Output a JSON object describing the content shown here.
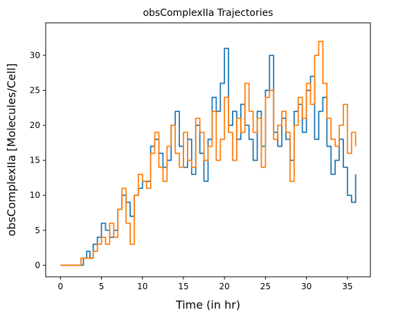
{
  "chart_data": {
    "type": "line",
    "title": "obsComplexIIa Trajectories",
    "xlabel": "Time (in hr)",
    "ylabel": "obsComplexIIa [Molecules/Cell]",
    "xlim": [
      -1.8,
      37.8
    ],
    "ylim": [
      -1.65,
      34.65
    ],
    "xticks": [
      0,
      5,
      10,
      15,
      20,
      25,
      30,
      35
    ],
    "yticks": [
      0,
      5,
      10,
      15,
      20,
      25,
      30
    ],
    "grid": false,
    "legend": "none",
    "series": [
      {
        "color": "#1f77b4",
        "x": [
          0,
          2.5,
          2.8,
          3.2,
          3.6,
          4.0,
          4.5,
          5.0,
          5.5,
          6.0,
          6.5,
          7.0,
          7.5,
          8.0,
          8.5,
          9.0,
          9.5,
          10.0,
          10.5,
          11.0,
          11.5,
          12.0,
          12.5,
          13.0,
          13.5,
          14.0,
          14.5,
          15.0,
          15.5,
          16.0,
          16.5,
          17.0,
          17.5,
          18.0,
          18.5,
          19.0,
          19.5,
          20.0,
          20.5,
          21.0,
          21.5,
          22.0,
          22.5,
          23.0,
          23.5,
          24.0,
          24.5,
          25.0,
          25.5,
          26.0,
          26.5,
          27.0,
          27.5,
          28.0,
          28.5,
          29.0,
          29.5,
          30.0,
          30.5,
          31.0,
          31.5,
          32.0,
          32.5,
          33.0,
          33.5,
          34.0,
          34.5,
          35.0,
          35.5,
          36.0
        ],
        "y": [
          0,
          0,
          1,
          2,
          1,
          3,
          4,
          6,
          5,
          4,
          5,
          8,
          10,
          9,
          7,
          10,
          11,
          12,
          12,
          17,
          18,
          16,
          14,
          15,
          20,
          22,
          17,
          14,
          18,
          13,
          20,
          16,
          12,
          18,
          24,
          22,
          26,
          31,
          20,
          22,
          18,
          23,
          20,
          18,
          15,
          22,
          17,
          25,
          30,
          19,
          17,
          21,
          18,
          15,
          22,
          23,
          19,
          25,
          27,
          18,
          22,
          24,
          17,
          13,
          15,
          18,
          14,
          10,
          9,
          13
        ]
      },
      {
        "color": "#ff7f0e",
        "x": [
          0,
          2.0,
          2.5,
          3.0,
          3.5,
          4.0,
          4.5,
          5.0,
          5.5,
          6.0,
          6.5,
          7.0,
          7.5,
          8.0,
          8.5,
          9.0,
          9.5,
          10.0,
          10.5,
          11.0,
          11.5,
          12.0,
          12.5,
          13.0,
          13.5,
          14.0,
          14.5,
          15.0,
          15.5,
          16.0,
          16.5,
          17.0,
          17.5,
          18.0,
          18.5,
          19.0,
          19.5,
          20.0,
          20.5,
          21.0,
          21.5,
          22.0,
          22.5,
          23.0,
          23.5,
          24.0,
          24.5,
          25.0,
          25.5,
          26.0,
          26.5,
          27.0,
          27.5,
          28.0,
          28.5,
          29.0,
          29.5,
          30.0,
          30.5,
          31.0,
          31.5,
          32.0,
          32.5,
          33.0,
          33.5,
          34.0,
          34.5,
          35.0,
          35.5,
          36.0
        ],
        "y": [
          0,
          0,
          1,
          1,
          1,
          2,
          3,
          4,
          3,
          6,
          4,
          8,
          11,
          6,
          3,
          10,
          13,
          12,
          11,
          16,
          19,
          14,
          12,
          17,
          20,
          16,
          14,
          19,
          15,
          14,
          21,
          19,
          15,
          17,
          22,
          15,
          18,
          24,
          19,
          15,
          21,
          19,
          26,
          22,
          19,
          21,
          14,
          24,
          25,
          18,
          20,
          22,
          19,
          12,
          20,
          24,
          21,
          26,
          23,
          30,
          32,
          26,
          21,
          18,
          17,
          20,
          23,
          16,
          19,
          17
        ]
      }
    ]
  }
}
